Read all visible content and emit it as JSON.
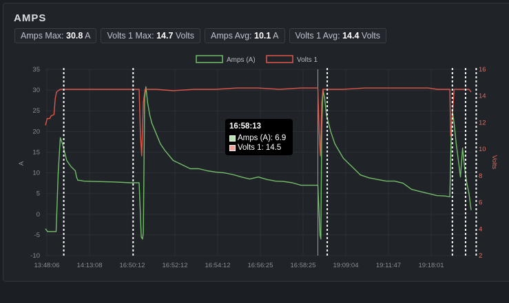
{
  "panel": {
    "title": "AMPS"
  },
  "stats": [
    {
      "label": "Amps Max:",
      "value": "30.8",
      "unit": "A"
    },
    {
      "label": "Volts 1 Max:",
      "value": "14.7",
      "unit": "Volts"
    },
    {
      "label": "Amps Avg:",
      "value": "10.1",
      "unit": "A"
    },
    {
      "label": "Volts 1 Avg:",
      "value": "14.4",
      "unit": "Volts"
    }
  ],
  "tooltip": {
    "time": "16:58:13",
    "rows": [
      {
        "text": "Amps (A): 6.9"
      },
      {
        "text": "Volts 1: 14.5"
      }
    ]
  },
  "colors": {
    "amps": "#73bf69",
    "volts": "#e0574a",
    "marker": "#ffffff",
    "tooltip_bg": "#000000"
  },
  "chart_data": {
    "type": "line",
    "x_tick_labels": [
      "13:48:06",
      "14:13:08",
      "16:50:12",
      "16:52:12",
      "16:54:12",
      "16:56:25",
      "16:58:25",
      "19:09:04",
      "19:11:47",
      "19:18:01"
    ],
    "ylabel": "A",
    "y2label": "Volts",
    "ylim": [
      -10,
      35
    ],
    "y_ticks": [
      35,
      30,
      25,
      20,
      15,
      10,
      5,
      0,
      -5,
      -10
    ],
    "y2lim": [
      2,
      16
    ],
    "y2_ticks": [
      16,
      14,
      12,
      10,
      8,
      6,
      4,
      2
    ],
    "legend": [
      "Amps (A)",
      "Volts 1"
    ],
    "legend_position": "top-center",
    "grid": true,
    "x_index_range": [
      0,
      100
    ],
    "series": [
      {
        "name": "Amps (A)",
        "axis": "left",
        "x": [
          0,
          0.5,
          2,
          2.5,
          3,
          3.5,
          4,
          5,
          6,
          7,
          7.3,
          7.6,
          8,
          9,
          12,
          16,
          20,
          22,
          22.5,
          22.8,
          23,
          23.3,
          23.6,
          24,
          24.5,
          25,
          26,
          27,
          28,
          30,
          32,
          34,
          36,
          38,
          40,
          42,
          44,
          46,
          48,
          50,
          52,
          54,
          56,
          58,
          60,
          62,
          64,
          64.5,
          64.7,
          64.9,
          65.2,
          65.6,
          66,
          67,
          68,
          70,
          72,
          74,
          76,
          78,
          80,
          82,
          84,
          86,
          88,
          90,
          92,
          94,
          95,
          95.3,
          95.6,
          96,
          96.5,
          97,
          97.5,
          98,
          98.5,
          99,
          99.5,
          100
        ],
        "values": [
          -3.5,
          -4.2,
          -4.2,
          -4.2,
          10,
          18.5,
          17,
          13,
          11.5,
          10.5,
          9,
          8.2,
          8.2,
          8,
          7.9,
          7.8,
          7.6,
          7.6,
          -5.5,
          -6,
          -4.5,
          28,
          30.8,
          27,
          24,
          22,
          19.5,
          17,
          15.5,
          13,
          12,
          11,
          11,
          10.5,
          10.2,
          10,
          9.6,
          9,
          8.5,
          9,
          8.4,
          8,
          7.9,
          7.6,
          7,
          7,
          7,
          -5,
          -6,
          21,
          30,
          28,
          24,
          20,
          17,
          13.5,
          11.5,
          9.5,
          8.8,
          8.4,
          8,
          8,
          7.5,
          6,
          5.5,
          5,
          4.5,
          4.4,
          4.2,
          18,
          25,
          22,
          17,
          13,
          9,
          16,
          11,
          7.5,
          5,
          1
        ]
      },
      {
        "name": "Volts 1",
        "axis": "right",
        "x": [
          0,
          0.4,
          1,
          1.3,
          2,
          2.3,
          2.6,
          3,
          3.5,
          4,
          5,
          6,
          7,
          7.5,
          8,
          10,
          15,
          20,
          22,
          22.3,
          22.6,
          23,
          23.4,
          24,
          26,
          30,
          35,
          40,
          45,
          50,
          55,
          60,
          63,
          64,
          64.3,
          64.6,
          64.9,
          65.2,
          65.6,
          66,
          70,
          75,
          80,
          85,
          90,
          92,
          93,
          94,
          94.5,
          95,
          95.2,
          95.6,
          96,
          97,
          98,
          98.8,
          99,
          99.5,
          100
        ],
        "values": [
          11.8,
          12.3,
          12.3,
          12.5,
          12.6,
          13.8,
          14.3,
          14.4,
          14.5,
          14.5,
          14.5,
          14.5,
          14.5,
          14.5,
          14.5,
          14.5,
          14.5,
          14.5,
          14.5,
          11.2,
          9.5,
          13.5,
          14.5,
          14.5,
          14.5,
          14.4,
          14.5,
          14.5,
          14.6,
          14.6,
          14.5,
          14.6,
          14.6,
          14.6,
          11.2,
          9.5,
          13.5,
          14.5,
          14.5,
          14.5,
          14.5,
          14.6,
          14.6,
          14.6,
          14.6,
          14.5,
          14.5,
          14.5,
          14.5,
          14.5,
          11,
          12.5,
          14.5,
          14.5,
          14.5,
          14.5,
          14.5,
          14.5,
          14.3
        ]
      }
    ],
    "event_markers_x": [
      4.3,
      20.6,
      66.2,
      95.6,
      98.7,
      101.2
    ],
    "crosshair_x": 64
  }
}
